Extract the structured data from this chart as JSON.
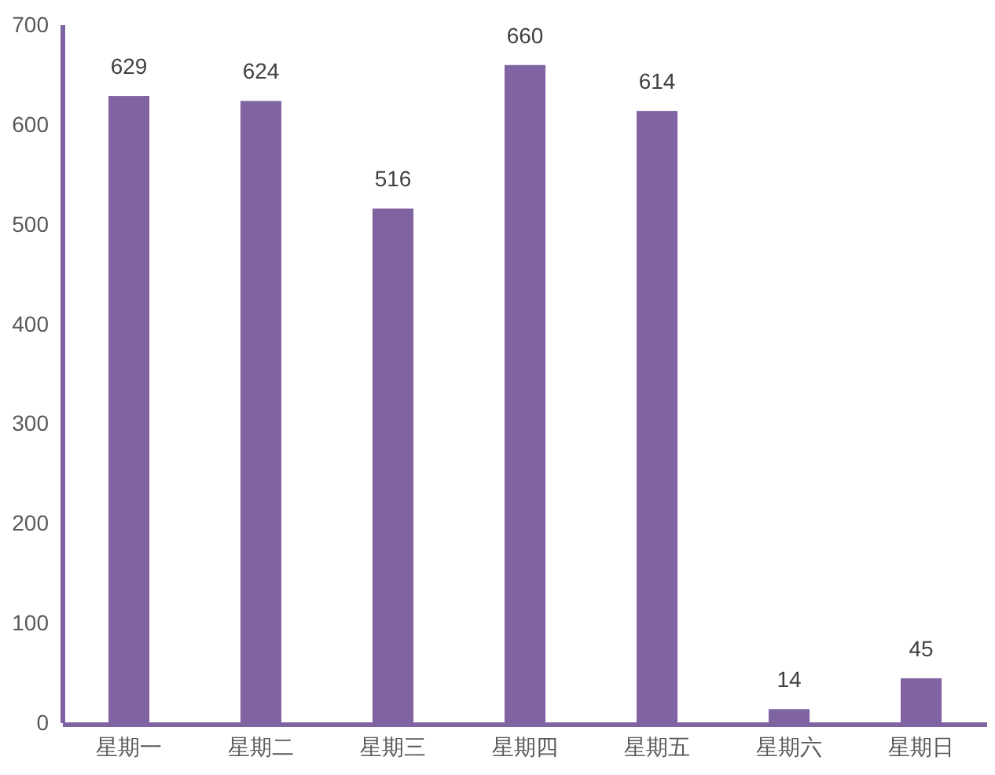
{
  "chart_data": {
    "type": "bar",
    "categories": [
      "星期一",
      "星期二",
      "星期三",
      "星期四",
      "星期五",
      "星期六",
      "星期日"
    ],
    "values": [
      629,
      624,
      516,
      660,
      614,
      14,
      45
    ],
    "color": "#8064a2",
    "ylim": [
      0,
      700
    ],
    "yticks": [
      0,
      100,
      200,
      300,
      400,
      500,
      600,
      700
    ],
    "data_labels": true,
    "grid": false
  }
}
